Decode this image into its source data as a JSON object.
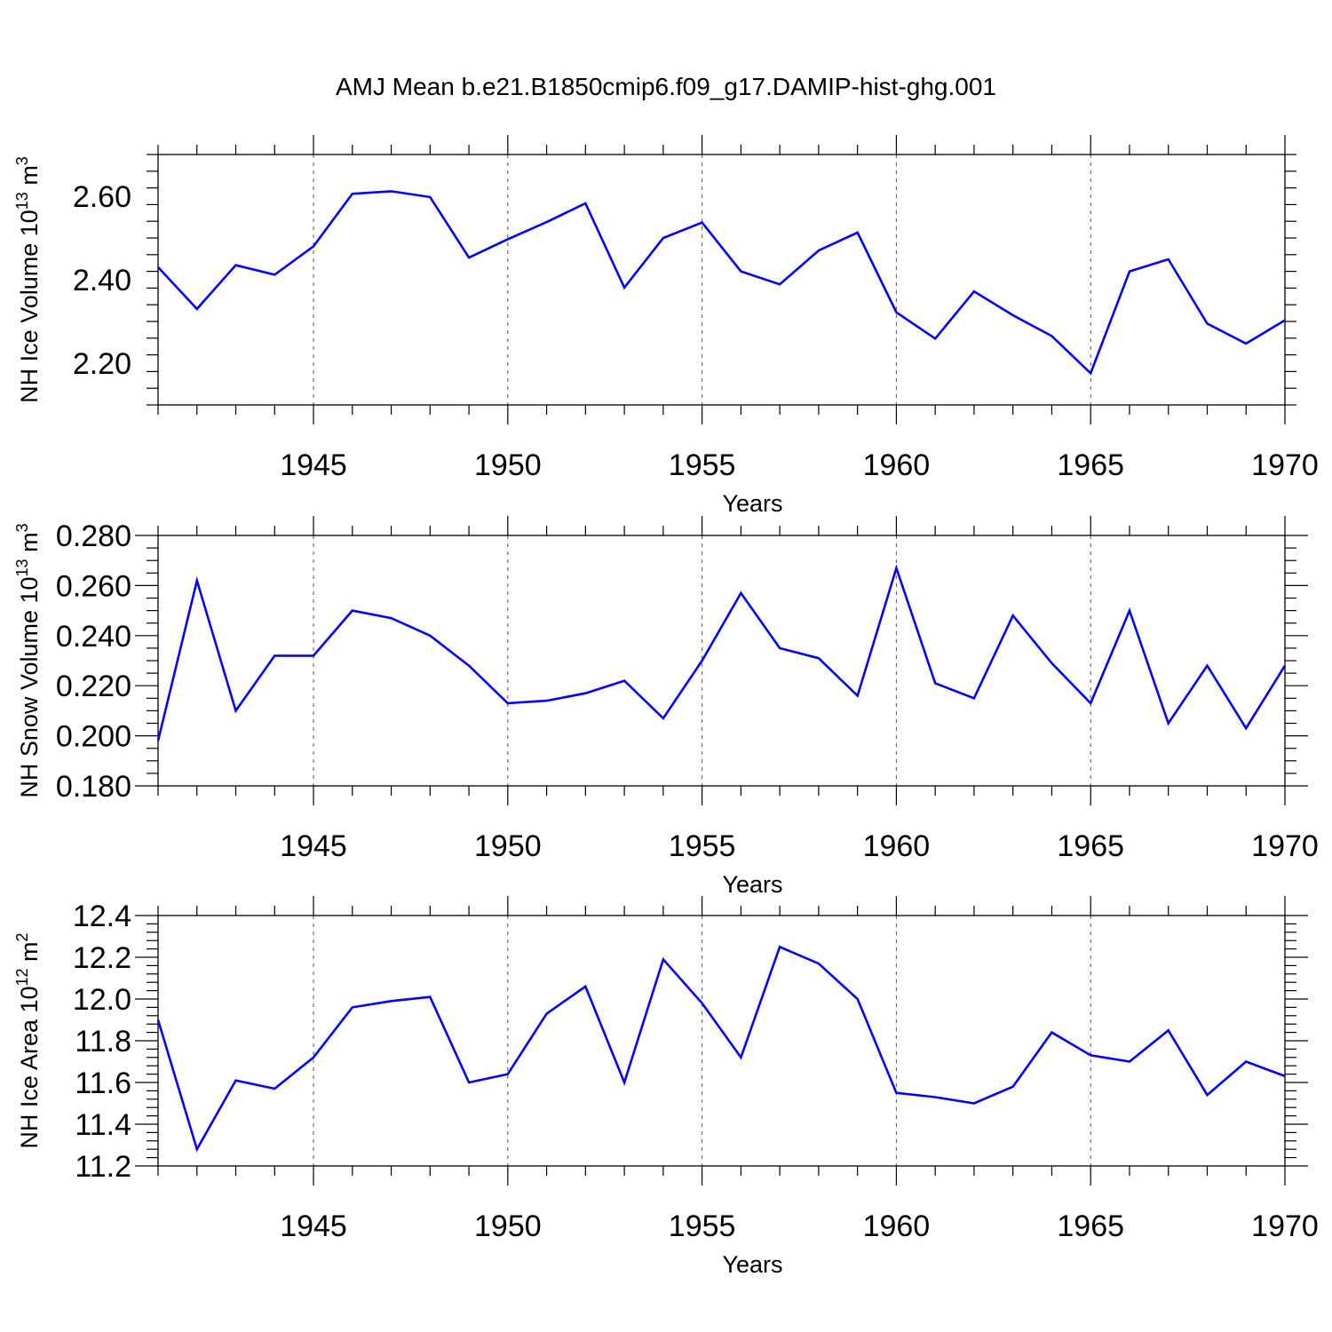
{
  "title": "AMJ Mean b.e21.B1850cmip6.f09_g17.DAMIP-hist-ghg.001",
  "line_color": "#0000ff",
  "chart_data": [
    {
      "type": "line",
      "ylabel": "NH Ice Volume 10^13 m^3",
      "ylabel_parts": {
        "text": "NH Ice Volume 10",
        "exp1": "13",
        "mid": " m",
        "exp2": "3"
      },
      "xlabel": "Years",
      "xlim": [
        1941,
        1970
      ],
      "ylim": [
        2.1,
        2.7
      ],
      "xticks": [
        1945,
        1950,
        1955,
        1960,
        1965,
        1970
      ],
      "yticks": [
        2.2,
        2.4,
        2.6
      ],
      "ytick_labels": [
        "2.20",
        "2.40",
        "2.60"
      ],
      "ydecimals": 2,
      "yminor": 0.04,
      "x": [
        1941,
        1942,
        1943,
        1944,
        1945,
        1946,
        1947,
        1948,
        1949,
        1950,
        1951,
        1952,
        1953,
        1954,
        1955,
        1956,
        1957,
        1958,
        1959,
        1960,
        1961,
        1962,
        1963,
        1964,
        1965,
        1966,
        1967,
        1968,
        1969,
        1970
      ],
      "values": [
        2.43,
        2.33,
        2.435,
        2.412,
        2.48,
        2.606,
        2.612,
        2.598,
        2.453,
        2.497,
        2.538,
        2.583,
        2.381,
        2.5,
        2.537,
        2.42,
        2.389,
        2.47,
        2.513,
        2.322,
        2.259,
        2.372,
        2.315,
        2.265,
        2.176,
        2.42,
        2.449,
        2.295,
        2.247,
        2.303
      ],
      "grid": "vertical-dashed"
    },
    {
      "type": "line",
      "ylabel": "NH Snow Volume 10^13 m^3",
      "ylabel_parts": {
        "text": "NH Snow Volume 10",
        "exp1": "13",
        "mid": " m",
        "exp2": "3"
      },
      "xlabel": "Years",
      "xlim": [
        1941,
        1970
      ],
      "ylim": [
        0.18,
        0.28
      ],
      "xticks": [
        1945,
        1950,
        1955,
        1960,
        1965,
        1970
      ],
      "yticks": [
        0.18,
        0.2,
        0.22,
        0.24,
        0.26,
        0.28
      ],
      "ytick_labels": [
        "0.180",
        "0.200",
        "0.220",
        "0.240",
        "0.260",
        "0.280"
      ],
      "ydecimals": 3,
      "yminor": 0.005,
      "x": [
        1941,
        1942,
        1943,
        1944,
        1945,
        1946,
        1947,
        1948,
        1949,
        1950,
        1951,
        1952,
        1953,
        1954,
        1955,
        1956,
        1957,
        1958,
        1959,
        1960,
        1961,
        1962,
        1963,
        1964,
        1965,
        1966,
        1967,
        1968,
        1969,
        1970
      ],
      "values": [
        0.198,
        0.262,
        0.21,
        0.232,
        0.232,
        0.25,
        0.247,
        0.24,
        0.228,
        0.213,
        0.214,
        0.217,
        0.222,
        0.207,
        0.23,
        0.257,
        0.235,
        0.231,
        0.216,
        0.267,
        0.221,
        0.215,
        0.248,
        0.229,
        0.213,
        0.25,
        0.205,
        0.228,
        0.203,
        0.228
      ],
      "grid": "vertical-dashed"
    },
    {
      "type": "line",
      "ylabel": "NH Ice Area 10^12 m^2",
      "ylabel_parts": {
        "text": "NH Ice Area 10",
        "exp1": "12",
        "mid": " m",
        "exp2": "2"
      },
      "xlabel": "Years",
      "xlim": [
        1941,
        1970
      ],
      "ylim": [
        11.2,
        12.4
      ],
      "xticks": [
        1945,
        1950,
        1955,
        1960,
        1965,
        1970
      ],
      "yticks": [
        11.2,
        11.4,
        11.6,
        11.8,
        12.0,
        12.2,
        12.4
      ],
      "ytick_labels": [
        "11.2",
        "11.4",
        "11.6",
        "11.8",
        "12.0",
        "12.2",
        "12.4"
      ],
      "ydecimals": 1,
      "yminor": 0.04,
      "x": [
        1941,
        1942,
        1943,
        1944,
        1945,
        1946,
        1947,
        1948,
        1949,
        1950,
        1951,
        1952,
        1953,
        1954,
        1955,
        1956,
        1957,
        1958,
        1959,
        1960,
        1961,
        1962,
        1963,
        1964,
        1965,
        1966,
        1967,
        1968,
        1969,
        1970
      ],
      "values": [
        11.9,
        11.28,
        11.61,
        11.57,
        11.72,
        11.96,
        11.99,
        12.01,
        11.6,
        11.64,
        11.93,
        12.06,
        11.6,
        12.19,
        11.98,
        11.72,
        12.25,
        12.17,
        12.0,
        11.55,
        11.53,
        11.5,
        11.58,
        11.84,
        11.73,
        11.7,
        11.85,
        11.54,
        11.7,
        11.63
      ],
      "grid": "vertical-dashed"
    }
  ]
}
